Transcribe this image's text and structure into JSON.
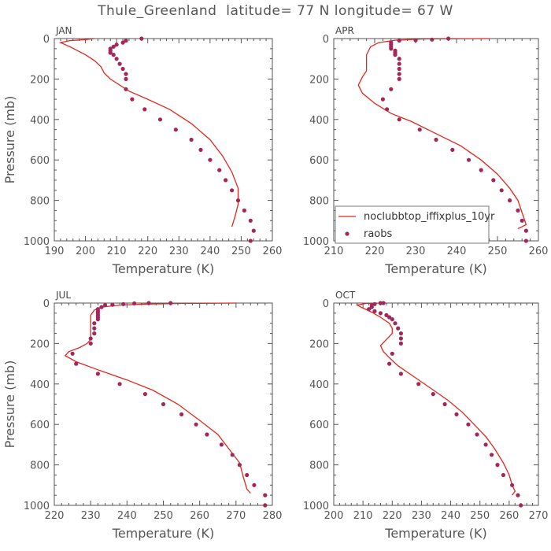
{
  "title": "Thule_Greenland  latitude= 77 N longitude= 67 W",
  "colors": {
    "model": "#e0281e",
    "obs": "#a2285a",
    "axis": "#555555"
  },
  "legend": {
    "model_label": "noclubbtop_iffixplus_10yr",
    "obs_label": "raobs"
  },
  "chart_data": [
    {
      "type": "line",
      "panel": "JAN",
      "xlabel": "Temperature (K)",
      "ylabel": "Pressure (mb)",
      "xlim": [
        190,
        260
      ],
      "ylim": [
        1000,
        0
      ],
      "xticks": [
        190,
        200,
        210,
        220,
        230,
        240,
        250,
        260
      ],
      "series": [
        {
          "role": "model",
          "kind": "line",
          "points": [
            [
              203,
              0
            ],
            [
              200,
              5
            ],
            [
              195,
              10
            ],
            [
              192,
              20
            ],
            [
              195,
              40
            ],
            [
              200,
              80
            ],
            [
              203,
              110
            ],
            [
              205,
              140
            ],
            [
              206,
              170
            ],
            [
              208,
              200
            ],
            [
              214,
              260
            ],
            [
              220,
              300
            ],
            [
              227,
              350
            ],
            [
              234,
              420
            ],
            [
              240,
              500
            ],
            [
              244,
              580
            ],
            [
              247,
              660
            ],
            [
              249,
              740
            ],
            [
              249,
              820
            ],
            [
              248,
              880
            ],
            [
              247,
              930
            ]
          ]
        },
        {
          "role": "obs",
          "kind": "scatter",
          "points": [
            [
              218,
              0
            ],
            [
              213,
              10
            ],
            [
              212,
              20
            ],
            [
              210,
              30
            ],
            [
              209,
              40
            ],
            [
              208,
              50
            ],
            [
              208,
              60
            ],
            [
              208,
              70
            ],
            [
              209,
              80
            ],
            [
              210,
              100
            ],
            [
              211,
              125
            ],
            [
              212,
              150
            ],
            [
              213,
              175
            ],
            [
              213,
              200
            ],
            [
              213,
              250
            ],
            [
              215,
              300
            ],
            [
              219,
              350
            ],
            [
              224,
              400
            ],
            [
              229,
              450
            ],
            [
              234,
              500
            ],
            [
              237,
              550
            ],
            [
              240,
              600
            ],
            [
              243,
              650
            ],
            [
              245,
              700
            ],
            [
              247,
              750
            ],
            [
              249,
              800
            ],
            [
              251,
              850
            ],
            [
              253,
              900
            ],
            [
              254,
              950
            ],
            [
              253,
              1000
            ]
          ]
        }
      ]
    },
    {
      "type": "line",
      "panel": "APR",
      "xlabel": "Temperature (K)",
      "ylabel": "",
      "xlim": [
        210,
        260
      ],
      "ylim": [
        1000,
        0
      ],
      "xticks": [
        210,
        220,
        230,
        240,
        250,
        260
      ],
      "series": [
        {
          "role": "model",
          "kind": "line",
          "points": [
            [
              248,
              0
            ],
            [
              232,
              2
            ],
            [
              225,
              8
            ],
            [
              221,
              20
            ],
            [
              219,
              40
            ],
            [
              218,
              80
            ],
            [
              218,
              120
            ],
            [
              218,
              160
            ],
            [
              217,
              190
            ],
            [
              216,
              230
            ],
            [
              217,
              270
            ],
            [
              220,
              320
            ],
            [
              224,
              370
            ],
            [
              229,
              410
            ],
            [
              235,
              470
            ],
            [
              241,
              530
            ],
            [
              246,
              600
            ],
            [
              250,
              670
            ],
            [
              253,
              740
            ],
            [
              255,
              800
            ],
            [
              256,
              860
            ],
            [
              257,
              920
            ],
            [
              255,
              940
            ]
          ]
        },
        {
          "role": "obs",
          "kind": "scatter",
          "points": [
            [
              238,
              0
            ],
            [
              234,
              5
            ],
            [
              230,
              8
            ],
            [
              226,
              10
            ],
            [
              224,
              20
            ],
            [
              224,
              30
            ],
            [
              224,
              40
            ],
            [
              224,
              50
            ],
            [
              225,
              60
            ],
            [
              225,
              70
            ],
            [
              225,
              80
            ],
            [
              226,
              100
            ],
            [
              226,
              125
            ],
            [
              226,
              150
            ],
            [
              226,
              175
            ],
            [
              226,
              200
            ],
            [
              224,
              250
            ],
            [
              222,
              300
            ],
            [
              223,
              350
            ],
            [
              226,
              400
            ],
            [
              231,
              450
            ],
            [
              235,
              500
            ],
            [
              239,
              550
            ],
            [
              243,
              600
            ],
            [
              246,
              650
            ],
            [
              249,
              700
            ],
            [
              251,
              750
            ],
            [
              253,
              800
            ],
            [
              255,
              850
            ],
            [
              256,
              900
            ],
            [
              257,
              950
            ],
            [
              257,
              1000
            ]
          ]
        }
      ]
    },
    {
      "type": "line",
      "panel": "JUL",
      "xlabel": "Temperature (K)",
      "ylabel": "Pressure (mb)",
      "xlim": [
        220,
        280
      ],
      "ylim": [
        1000,
        0
      ],
      "xticks": [
        220,
        230,
        240,
        250,
        260,
        270,
        280
      ],
      "series": [
        {
          "role": "model",
          "kind": "line",
          "points": [
            [
              270,
              0
            ],
            [
              255,
              2
            ],
            [
              245,
              5
            ],
            [
              238,
              10
            ],
            [
              233,
              20
            ],
            [
              231,
              35
            ],
            [
              230,
              60
            ],
            [
              230,
              100
            ],
            [
              230,
              150
            ],
            [
              230,
              180
            ],
            [
              229,
              200
            ],
            [
              227,
              220
            ],
            [
              224,
              240
            ],
            [
              223,
              260
            ],
            [
              226,
              290
            ],
            [
              232,
              330
            ],
            [
              240,
              380
            ],
            [
              247,
              430
            ],
            [
              254,
              500
            ],
            [
              260,
              580
            ],
            [
              265,
              650
            ],
            [
              268,
              720
            ],
            [
              271,
              790
            ],
            [
              272,
              860
            ],
            [
              273,
              920
            ],
            [
              274,
              940
            ]
          ]
        },
        {
          "role": "obs",
          "kind": "scatter",
          "points": [
            [
              252,
              0
            ],
            [
              246,
              0
            ],
            [
              242,
              2
            ],
            [
              239,
              5
            ],
            [
              236,
              8
            ],
            [
              234,
              10
            ],
            [
              233,
              20
            ],
            [
              232,
              30
            ],
            [
              232,
              40
            ],
            [
              232,
              50
            ],
            [
              232,
              60
            ],
            [
              232,
              70
            ],
            [
              232,
              80
            ],
            [
              231,
              100
            ],
            [
              231,
              125
            ],
            [
              231,
              150
            ],
            [
              230,
              175
            ],
            [
              230,
              200
            ],
            [
              225,
              250
            ],
            [
              226,
              300
            ],
            [
              232,
              350
            ],
            [
              238,
              400
            ],
            [
              245,
              450
            ],
            [
              250,
              500
            ],
            [
              255,
              550
            ],
            [
              259,
              600
            ],
            [
              262,
              650
            ],
            [
              266,
              700
            ],
            [
              269,
              750
            ],
            [
              271,
              800
            ],
            [
              273,
              850
            ],
            [
              275,
              900
            ],
            [
              278,
              950
            ],
            [
              278,
              1000
            ]
          ]
        }
      ]
    },
    {
      "type": "line",
      "panel": "OCT",
      "xlabel": "Temperature (K)",
      "ylabel": "",
      "xlim": [
        200,
        270
      ],
      "ylim": [
        1000,
        0
      ],
      "xticks": [
        200,
        210,
        220,
        230,
        240,
        250,
        260,
        270
      ],
      "series": [
        {
          "role": "model",
          "kind": "line",
          "points": [
            [
              217,
              0
            ],
            [
              211,
              2
            ],
            [
              208,
              10
            ],
            [
              210,
              25
            ],
            [
              213,
              45
            ],
            [
              216,
              70
            ],
            [
              219,
              100
            ],
            [
              220,
              125
            ],
            [
              220,
              150
            ],
            [
              218,
              180
            ],
            [
              216,
              210
            ],
            [
              217,
              240
            ],
            [
              219,
              270
            ],
            [
              222,
              310
            ],
            [
              227,
              360
            ],
            [
              233,
              420
            ],
            [
              239,
              480
            ],
            [
              244,
              540
            ],
            [
              248,
              600
            ],
            [
              252,
              660
            ],
            [
              255,
              720
            ],
            [
              258,
              790
            ],
            [
              260,
              850
            ],
            [
              261,
              900
            ],
            [
              262,
              930
            ],
            [
              261,
              950
            ]
          ]
        },
        {
          "role": "obs",
          "kind": "scatter",
          "points": [
            [
              217,
              0
            ],
            [
              216,
              0
            ],
            [
              214,
              5
            ],
            [
              213,
              10
            ],
            [
              213,
              20
            ],
            [
              212,
              30
            ],
            [
              214,
              40
            ],
            [
              216,
              50
            ],
            [
              218,
              60
            ],
            [
              219,
              70
            ],
            [
              220,
              80
            ],
            [
              221,
              100
            ],
            [
              222,
              125
            ],
            [
              223,
              150
            ],
            [
              223,
              175
            ],
            [
              223,
              200
            ],
            [
              220,
              250
            ],
            [
              219,
              300
            ],
            [
              223,
              350
            ],
            [
              229,
              400
            ],
            [
              234,
              450
            ],
            [
              238,
              500
            ],
            [
              242,
              550
            ],
            [
              246,
              600
            ],
            [
              249,
              650
            ],
            [
              252,
              700
            ],
            [
              254,
              750
            ],
            [
              256,
              800
            ],
            [
              258,
              850
            ],
            [
              261,
              900
            ],
            [
              263,
              950
            ],
            [
              264,
              1000
            ]
          ]
        }
      ]
    }
  ]
}
